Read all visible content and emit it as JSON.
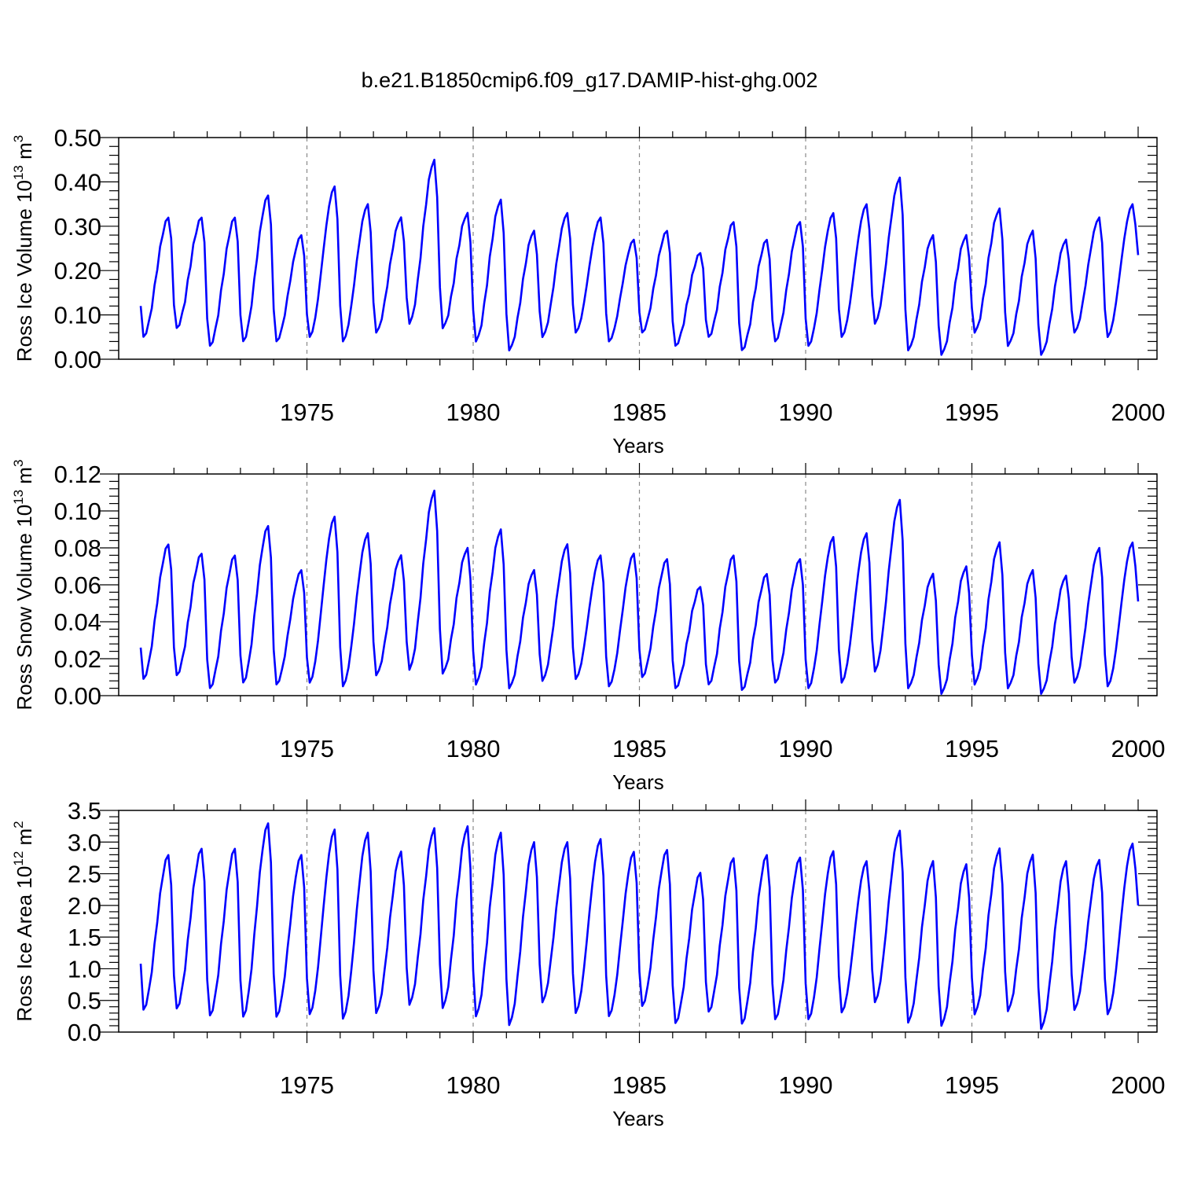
{
  "title": "b.e21.B1850cmip6.f09_g17.DAMIP-hist-ghg.002",
  "colors": {
    "line": "#0000ff",
    "axis": "#000000",
    "grid": "#888888"
  },
  "chart_data": [
    {
      "type": "line",
      "name": "ross-ice-volume",
      "ylabel": "Ross Ice Volume 10",
      "ylabel_exp": "13",
      "ylabel_unit": " m",
      "ylabel_unit_exp": "3",
      "xlabel": "Years",
      "xlim": [
        1970,
        2000
      ],
      "ylim": [
        0.0,
        0.5
      ],
      "xticks": [
        1975,
        1980,
        1985,
        1990,
        1995,
        2000
      ],
      "xtick_labels": [
        "1975",
        "1980",
        "1985",
        "1990",
        "1995",
        "2000"
      ],
      "yticks": [
        0.0,
        0.1,
        0.2,
        0.3,
        0.4,
        0.5
      ],
      "ytick_labels": [
        "0.00",
        "0.10",
        "0.20",
        "0.30",
        "0.40",
        "0.50"
      ],
      "year_peaks": [
        0.32,
        0.32,
        0.32,
        0.37,
        0.28,
        0.39,
        0.35,
        0.32,
        0.45,
        0.33,
        0.36,
        0.29,
        0.33,
        0.32,
        0.27,
        0.29,
        0.24,
        0.31,
        0.27,
        0.31,
        0.33,
        0.35,
        0.41,
        0.28,
        0.28,
        0.34,
        0.29,
        0.27,
        0.32,
        0.35
      ],
      "year_troughs": [
        0.05,
        0.07,
        0.03,
        0.04,
        0.04,
        0.05,
        0.04,
        0.06,
        0.08,
        0.07,
        0.04,
        0.02,
        0.05,
        0.06,
        0.04,
        0.06,
        0.03,
        0.05,
        0.02,
        0.04,
        0.03,
        0.05,
        0.08,
        0.02,
        0.01,
        0.06,
        0.03,
        0.01,
        0.06,
        0.05
      ],
      "start_value": 0.12,
      "end_value": 0.235
    },
    {
      "type": "line",
      "name": "ross-snow-volume",
      "ylabel": "Ross Snow Volume 10",
      "ylabel_exp": "13",
      "ylabel_unit": " m",
      "ylabel_unit_exp": "3",
      "xlabel": "Years",
      "xlim": [
        1970,
        2000
      ],
      "ylim": [
        0.0,
        0.12
      ],
      "xticks": [
        1975,
        1980,
        1985,
        1990,
        1995,
        2000
      ],
      "xtick_labels": [
        "1975",
        "1980",
        "1985",
        "1990",
        "1995",
        "2000"
      ],
      "yticks": [
        0.0,
        0.02,
        0.04,
        0.06,
        0.08,
        0.1,
        0.12
      ],
      "ytick_labels": [
        "0.00",
        "0.02",
        "0.04",
        "0.06",
        "0.08",
        "0.10",
        "0.12"
      ],
      "year_peaks": [
        0.082,
        0.077,
        0.076,
        0.092,
        0.068,
        0.097,
        0.088,
        0.076,
        0.111,
        0.08,
        0.09,
        0.068,
        0.082,
        0.076,
        0.077,
        0.074,
        0.059,
        0.076,
        0.066,
        0.074,
        0.086,
        0.088,
        0.106,
        0.066,
        0.07,
        0.083,
        0.068,
        0.065,
        0.08,
        0.083
      ],
      "year_troughs": [
        0.009,
        0.011,
        0.004,
        0.007,
        0.006,
        0.007,
        0.005,
        0.011,
        0.014,
        0.012,
        0.006,
        0.004,
        0.008,
        0.009,
        0.005,
        0.01,
        0.004,
        0.006,
        0.003,
        0.007,
        0.004,
        0.007,
        0.013,
        0.004,
        0.001,
        0.006,
        0.004,
        0.001,
        0.007,
        0.005
      ],
      "start_value": 0.026,
      "end_value": 0.051
    },
    {
      "type": "line",
      "name": "ross-ice-area",
      "ylabel": "Ross Ice Area 10",
      "ylabel_exp": "12",
      "ylabel_unit": " m",
      "ylabel_unit_exp": "2",
      "xlabel": "Years",
      "xlim": [
        1970,
        2000
      ],
      "ylim": [
        0.0,
        3.5
      ],
      "xticks": [
        1975,
        1980,
        1985,
        1990,
        1995,
        2000
      ],
      "xtick_labels": [
        "1975",
        "1980",
        "1985",
        "1990",
        "1995",
        "2000"
      ],
      "yticks": [
        0.0,
        0.5,
        1.0,
        1.5,
        2.0,
        2.5,
        3.0,
        3.5
      ],
      "ytick_labels": [
        "0.0",
        "0.5",
        "1.0",
        "1.5",
        "2.0",
        "2.5",
        "3.0",
        "3.5"
      ],
      "year_peaks": [
        2.8,
        2.9,
        2.9,
        3.3,
        2.8,
        3.2,
        3.15,
        2.85,
        3.22,
        3.25,
        3.15,
        3.0,
        3.0,
        3.05,
        2.85,
        2.88,
        2.52,
        2.75,
        2.8,
        2.76,
        2.86,
        2.7,
        3.18,
        2.7,
        2.65,
        2.9,
        2.8,
        2.7,
        2.72,
        2.98
      ],
      "year_troughs": [
        0.35,
        0.37,
        0.26,
        0.24,
        0.24,
        0.28,
        0.21,
        0.3,
        0.43,
        0.38,
        0.25,
        0.11,
        0.47,
        0.3,
        0.25,
        0.41,
        0.14,
        0.32,
        0.13,
        0.2,
        0.2,
        0.31,
        0.47,
        0.15,
        0.1,
        0.28,
        0.33,
        0.05,
        0.35,
        0.28
      ],
      "start_value": 1.08,
      "end_value": 2.0
    }
  ]
}
